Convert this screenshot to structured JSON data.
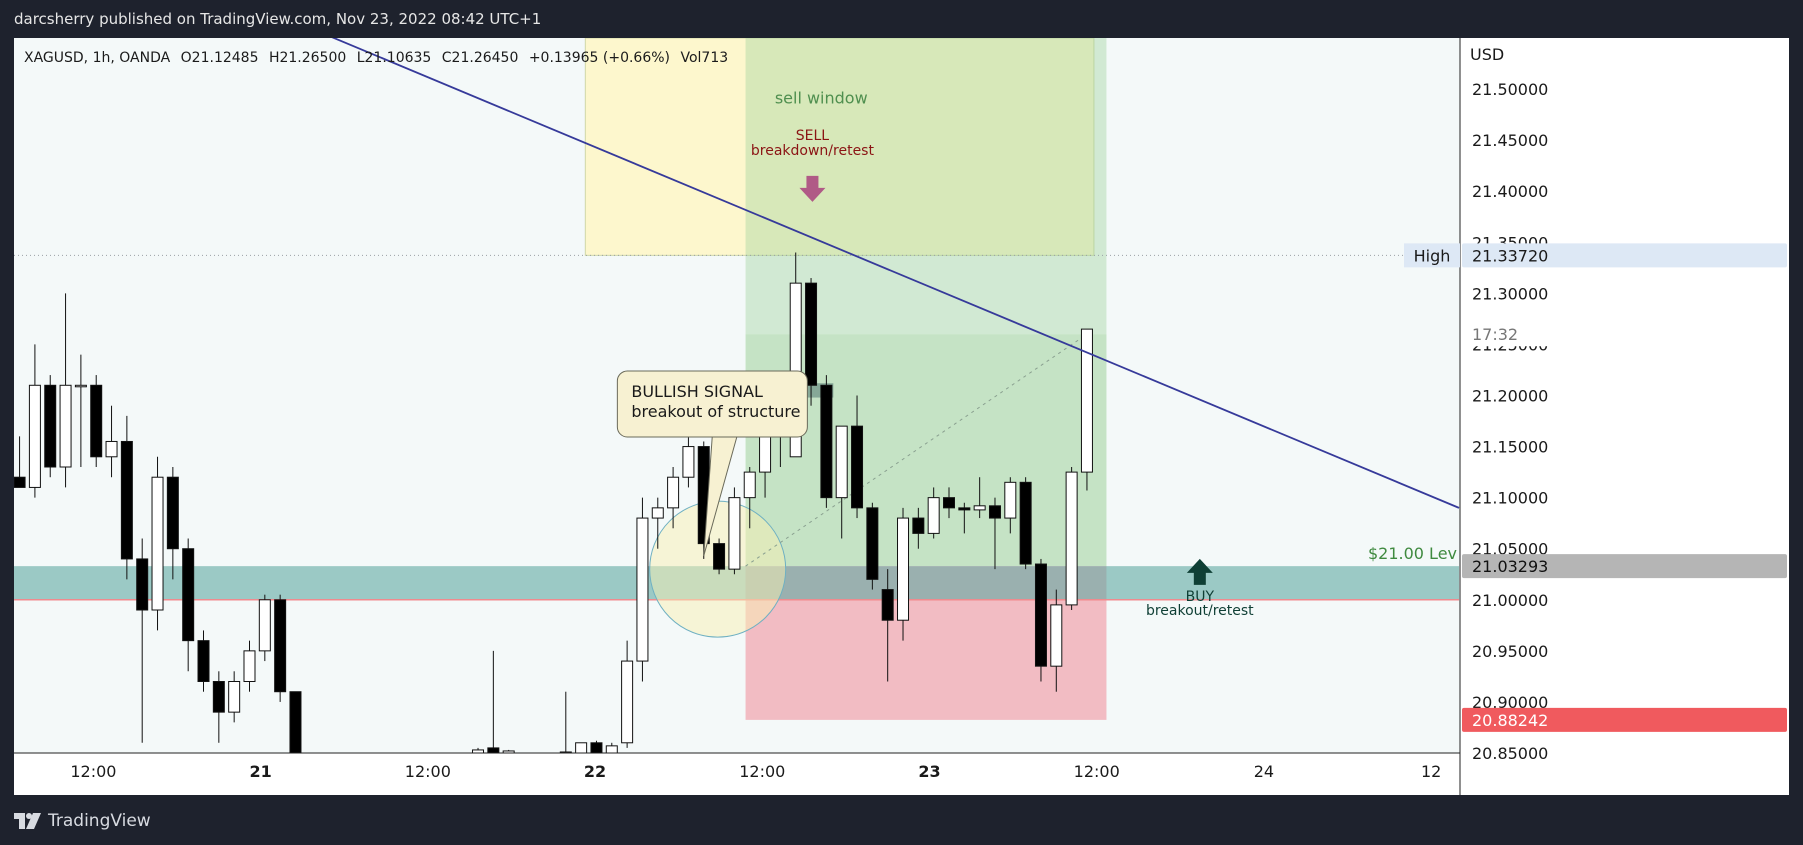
{
  "header": {
    "publisher": "darcsherry published on TradingView.com, Nov 23, 2022 08:42 UTC+1"
  },
  "footer": {
    "brand": "TradingView",
    "logo_icon": "tradingview-logo-icon"
  },
  "legend": {
    "symbol": "XAGUSD, 1h, OANDA",
    "open": "O21.12485",
    "high": "H21.26500",
    "low": "L21.10635",
    "close": "C21.26450",
    "change": "+0.13965 (+0.66%)",
    "volume": "Vol713"
  },
  "chart_data": {
    "type": "candlestick",
    "symbol": "XAGUSD",
    "interval": "1h",
    "exchange": "OANDA",
    "currency": "USD",
    "y_tick_labels": [
      "21.50000",
      "21.45000",
      "21.40000",
      "21.35000",
      "21.30000",
      "21.25000",
      "21.20000",
      "21.15000",
      "21.10000",
      "21.05000",
      "21.00000",
      "20.95000",
      "20.90000",
      "20.85000"
    ],
    "y_ticks": [
      21.5,
      21.45,
      21.4,
      21.35,
      21.3,
      21.25,
      21.2,
      21.15,
      21.1,
      21.05,
      21.0,
      20.95,
      20.9,
      20.85
    ],
    "ylim": [
      20.85,
      21.55
    ],
    "x_tick_labels": [
      "12:00",
      "21",
      "12:00",
      "22",
      "12:00",
      "23",
      "12:00",
      "24",
      "12"
    ],
    "x_tick_bold": [
      false,
      true,
      false,
      true,
      false,
      true,
      false,
      false,
      false
    ],
    "x_ticks_hours": [
      12,
      24,
      36,
      48,
      60,
      72,
      84,
      96,
      108
    ],
    "x_start_hours": 6.3,
    "x_end_hours": 110,
    "candles": [
      {
        "t": 6.7,
        "o": 21.12,
        "h": 21.16,
        "l": 21.11,
        "c": 21.11
      },
      {
        "t": 7.8,
        "o": 21.11,
        "h": 21.25,
        "l": 21.1,
        "c": 21.21
      },
      {
        "t": 8.9,
        "o": 21.21,
        "h": 21.22,
        "l": 21.12,
        "c": 21.13
      },
      {
        "t": 10.0,
        "o": 21.13,
        "h": 21.3,
        "l": 21.11,
        "c": 21.21
      },
      {
        "t": 11.1,
        "o": 21.21,
        "h": 21.24,
        "l": 21.13,
        "c": 21.21
      },
      {
        "t": 12.2,
        "o": 21.21,
        "h": 21.22,
        "l": 21.13,
        "c": 21.14
      },
      {
        "t": 13.3,
        "o": 21.14,
        "h": 21.19,
        "l": 21.12,
        "c": 21.155
      },
      {
        "t": 14.4,
        "o": 21.155,
        "h": 21.18,
        "l": 21.02,
        "c": 21.04
      },
      {
        "t": 15.5,
        "o": 21.04,
        "h": 21.06,
        "l": 20.86,
        "c": 20.99
      },
      {
        "t": 16.6,
        "o": 20.99,
        "h": 21.14,
        "l": 20.97,
        "c": 21.12
      },
      {
        "t": 17.7,
        "o": 21.12,
        "h": 21.13,
        "l": 21.02,
        "c": 21.05
      },
      {
        "t": 18.8,
        "o": 21.05,
        "h": 21.06,
        "l": 20.93,
        "c": 20.96
      },
      {
        "t": 19.9,
        "o": 20.96,
        "h": 20.97,
        "l": 20.91,
        "c": 20.92
      },
      {
        "t": 21.0,
        "o": 20.92,
        "h": 20.93,
        "l": 20.86,
        "c": 20.89
      },
      {
        "t": 22.1,
        "o": 20.89,
        "h": 20.93,
        "l": 20.88,
        "c": 20.92
      },
      {
        "t": 23.2,
        "o": 20.92,
        "h": 20.96,
        "l": 20.91,
        "c": 20.95
      },
      {
        "t": 24.3,
        "o": 20.95,
        "h": 21.005,
        "l": 20.94,
        "c": 21.0
      },
      {
        "t": 25.4,
        "o": 21.0,
        "h": 21.005,
        "l": 20.9,
        "c": 20.91
      },
      {
        "t": 26.5,
        "o": 20.91,
        "h": 20.91,
        "l": 20.84,
        "c": 20.85
      },
      {
        "t": 39.6,
        "o": 20.849,
        "h": 20.855,
        "l": 20.845,
        "c": 20.853
      },
      {
        "t": 40.7,
        "o": 20.855,
        "h": 20.95,
        "l": 20.845,
        "c": 20.85
      },
      {
        "t": 41.8,
        "o": 20.849,
        "h": 20.853,
        "l": 20.847,
        "c": 20.852
      },
      {
        "t": 45.9,
        "o": 20.849,
        "h": 20.91,
        "l": 20.845,
        "c": 20.851
      },
      {
        "t": 47.0,
        "o": 20.849,
        "h": 20.86,
        "l": 20.845,
        "c": 20.86
      },
      {
        "t": 48.1,
        "o": 20.86,
        "h": 20.862,
        "l": 20.848,
        "c": 20.85
      },
      {
        "t": 49.2,
        "o": 20.85,
        "h": 20.86,
        "l": 20.845,
        "c": 20.857
      },
      {
        "t": 50.3,
        "o": 20.86,
        "h": 20.96,
        "l": 20.855,
        "c": 20.94
      },
      {
        "t": 51.4,
        "o": 20.94,
        "h": 21.1,
        "l": 20.92,
        "c": 21.08
      },
      {
        "t": 52.5,
        "o": 21.08,
        "h": 21.1,
        "l": 21.05,
        "c": 21.09
      },
      {
        "t": 53.6,
        "o": 21.09,
        "h": 21.13,
        "l": 21.07,
        "c": 21.12
      },
      {
        "t": 54.7,
        "o": 21.12,
        "h": 21.16,
        "l": 21.11,
        "c": 21.15
      },
      {
        "t": 55.8,
        "o": 21.15,
        "h": 21.155,
        "l": 21.04,
        "c": 21.055
      },
      {
        "t": 56.9,
        "o": 21.055,
        "h": 21.06,
        "l": 21.025,
        "c": 21.03
      },
      {
        "t": 58.0,
        "o": 21.03,
        "h": 21.11,
        "l": 21.025,
        "c": 21.1
      },
      {
        "t": 59.1,
        "o": 21.1,
        "h": 21.13,
        "l": 21.07,
        "c": 21.125
      },
      {
        "t": 60.2,
        "o": 21.125,
        "h": 21.18,
        "l": 21.1,
        "c": 21.16
      },
      {
        "t": 61.3,
        "o": 21.16,
        "h": 21.19,
        "l": 21.13,
        "c": 21.18
      },
      {
        "t": 62.4,
        "o": 21.14,
        "h": 21.34,
        "l": 21.14,
        "c": 21.31
      },
      {
        "t": 63.5,
        "o": 21.31,
        "h": 21.315,
        "l": 21.19,
        "c": 21.21
      },
      {
        "t": 64.6,
        "o": 21.21,
        "h": 21.22,
        "l": 21.09,
        "c": 21.1
      },
      {
        "t": 65.7,
        "o": 21.1,
        "h": 21.17,
        "l": 21.06,
        "c": 21.17
      },
      {
        "t": 66.8,
        "o": 21.17,
        "h": 21.2,
        "l": 21.08,
        "c": 21.09
      },
      {
        "t": 67.9,
        "o": 21.09,
        "h": 21.095,
        "l": 21.01,
        "c": 21.02
      },
      {
        "t": 69.0,
        "o": 21.01,
        "h": 21.03,
        "l": 20.92,
        "c": 20.98
      },
      {
        "t": 70.1,
        "o": 20.98,
        "h": 21.09,
        "l": 20.96,
        "c": 21.08
      },
      {
        "t": 71.2,
        "o": 21.08,
        "h": 21.09,
        "l": 21.05,
        "c": 21.065
      },
      {
        "t": 72.3,
        "o": 21.065,
        "h": 21.11,
        "l": 21.06,
        "c": 21.1
      },
      {
        "t": 73.4,
        "o": 21.1,
        "h": 21.11,
        "l": 21.08,
        "c": 21.09
      },
      {
        "t": 74.5,
        "o": 21.09,
        "h": 21.095,
        "l": 21.065,
        "c": 21.088
      },
      {
        "t": 75.6,
        "o": 21.088,
        "h": 21.12,
        "l": 21.08,
        "c": 21.092
      },
      {
        "t": 76.7,
        "o": 21.092,
        "h": 21.1,
        "l": 21.03,
        "c": 21.08
      },
      {
        "t": 77.8,
        "o": 21.08,
        "h": 21.12,
        "l": 21.065,
        "c": 21.115
      },
      {
        "t": 78.9,
        "o": 21.115,
        "h": 21.12,
        "l": 21.03,
        "c": 21.035
      },
      {
        "t": 80.0,
        "o": 21.035,
        "h": 21.04,
        "l": 20.92,
        "c": 20.935
      },
      {
        "t": 81.1,
        "o": 20.935,
        "h": 21.01,
        "l": 20.91,
        "c": 20.995
      },
      {
        "t": 82.2,
        "o": 20.995,
        "h": 21.13,
        "l": 20.99,
        "c": 21.125
      },
      {
        "t": 83.3,
        "o": 21.125,
        "h": 21.265,
        "l": 21.107,
        "c": 21.265
      }
    ],
    "price_labels": [
      {
        "label": "High",
        "value": "21.33720",
        "price": 21.3372,
        "bg": "#dde8f5",
        "fg": "#1a1a1a"
      },
      {
        "label": "",
        "value": "17:32",
        "price": 21.26,
        "bg": "#ffffff",
        "fg": "#777777"
      },
      {
        "label": "",
        "value": "21.03293",
        "price": 21.03293,
        "bg": "#b5b5b5",
        "fg": "#111111"
      },
      {
        "label": "",
        "value": "20.88242",
        "price": 20.88242,
        "bg": "#f05a5e",
        "fg": "#ffffff"
      }
    ],
    "support_band": {
      "from": 21.0,
      "to": 21.03293,
      "color": "#5fa9a2"
    },
    "resistance_level": 21.3372,
    "trendline": {
      "from": [
        0.3,
        21.715
      ],
      "to": [
        110,
        21.09
      ],
      "color": "#363a9a"
    },
    "position": {
      "start_hours": 58.8,
      "end_hours": 84.7,
      "entry": 21.03293,
      "target": 21.26,
      "stop": 20.88242,
      "box_top": 21.55,
      "profit_color": "#9ed29a",
      "loss_color": "#f1a3ad"
    },
    "sell_zone": {
      "start_hours": 47.3,
      "end_hours": 83.8,
      "top": 21.55,
      "bottom": 21.3372,
      "color": "#fff6c2"
    },
    "annotations": {
      "sell_window": "sell window",
      "sell_title": "SELL",
      "sell_sub": "breakdown/retest",
      "buy_title": "BUY",
      "buy_sub": "breakout/retest",
      "bullish_title": "BULLISH SIGNAL",
      "bullish_sub": "breakout of structure",
      "level_text": "$21.00 Lev"
    }
  }
}
